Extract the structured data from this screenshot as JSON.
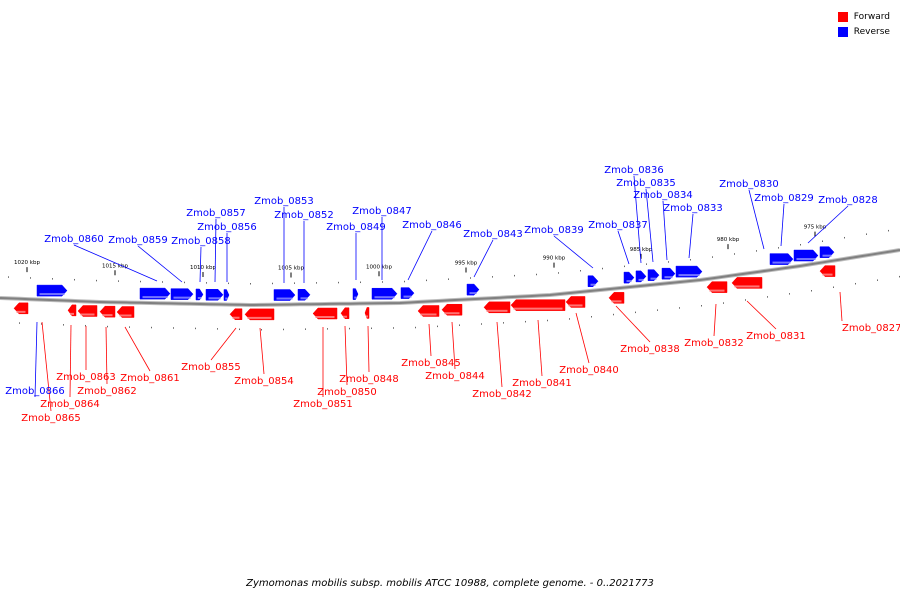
{
  "legend": [
    {
      "label": "Forward",
      "color": "#ff0000"
    },
    {
      "label": "Reverse",
      "color": "#0000ff"
    }
  ],
  "caption": "Zymomonas mobilis subsp. mobilis ATCC 10988, complete genome. - 0..2021773",
  "colors": {
    "forward": "#ff0000",
    "reverse": "#0000ff",
    "backbone": "#808080"
  },
  "ticks": [
    "1020 kbp",
    "1015 kbp",
    "1010 kbp",
    "1005 kbp",
    "1000 kbp",
    "995 kbp",
    "990 kbp",
    "985 kbp",
    "980 kbp",
    "975 kbp"
  ],
  "genes": [
    {
      "name": "Zmob_0827",
      "strand": "forward"
    },
    {
      "name": "Zmob_0828",
      "strand": "reverse"
    },
    {
      "name": "Zmob_0829",
      "strand": "reverse"
    },
    {
      "name": "Zmob_0830",
      "strand": "reverse"
    },
    {
      "name": "Zmob_0831",
      "strand": "forward"
    },
    {
      "name": "Zmob_0832",
      "strand": "forward"
    },
    {
      "name": "Zmob_0833",
      "strand": "reverse"
    },
    {
      "name": "Zmob_0834",
      "strand": "reverse"
    },
    {
      "name": "Zmob_0835",
      "strand": "reverse"
    },
    {
      "name": "Zmob_0836",
      "strand": "reverse"
    },
    {
      "name": "Zmob_0837",
      "strand": "reverse"
    },
    {
      "name": "Zmob_0838",
      "strand": "forward"
    },
    {
      "name": "Zmob_0839",
      "strand": "reverse"
    },
    {
      "name": "Zmob_0840",
      "strand": "forward"
    },
    {
      "name": "Zmob_0841",
      "strand": "forward"
    },
    {
      "name": "Zmob_0842",
      "strand": "forward"
    },
    {
      "name": "Zmob_0843",
      "strand": "reverse"
    },
    {
      "name": "Zmob_0844",
      "strand": "forward"
    },
    {
      "name": "Zmob_0845",
      "strand": "forward"
    },
    {
      "name": "Zmob_0846",
      "strand": "reverse"
    },
    {
      "name": "Zmob_0847",
      "strand": "reverse"
    },
    {
      "name": "Zmob_0848",
      "strand": "forward"
    },
    {
      "name": "Zmob_0849",
      "strand": "reverse"
    },
    {
      "name": "Zmob_0850",
      "strand": "forward"
    },
    {
      "name": "Zmob_0851",
      "strand": "forward"
    },
    {
      "name": "Zmob_0852",
      "strand": "reverse"
    },
    {
      "name": "Zmob_0853",
      "strand": "reverse"
    },
    {
      "name": "Zmob_0854",
      "strand": "forward"
    },
    {
      "name": "Zmob_0855",
      "strand": "forward"
    },
    {
      "name": "Zmob_0856",
      "strand": "reverse"
    },
    {
      "name": "Zmob_0857",
      "strand": "reverse"
    },
    {
      "name": "Zmob_0858",
      "strand": "reverse"
    },
    {
      "name": "Zmob_0859",
      "strand": "reverse"
    },
    {
      "name": "Zmob_0860",
      "strand": "reverse"
    },
    {
      "name": "Zmob_0861",
      "strand": "forward"
    },
    {
      "name": "Zmob_0862",
      "strand": "forward"
    },
    {
      "name": "Zmob_0863",
      "strand": "forward"
    },
    {
      "name": "Zmob_0864",
      "strand": "forward"
    },
    {
      "name": "Zmob_0865",
      "strand": "forward"
    },
    {
      "name": "Zmob_0866",
      "strand": "reverse"
    }
  ]
}
